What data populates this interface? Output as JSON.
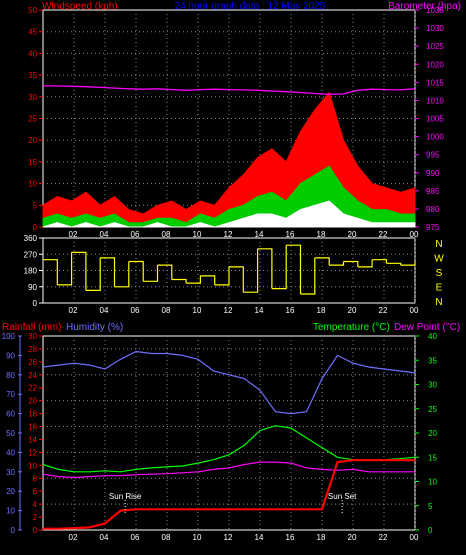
{
  "header": {
    "left_label": "Windspeed (kph)",
    "center_label": "24 hour graph data : 12 May 2025",
    "right_label": "Barometer (hpa)"
  },
  "colors": {
    "bg": "#000000",
    "frame": "#ffffff",
    "grid": "#8a8a8a",
    "wind_gust": "#ff0000",
    "wind_avg": "#00cc00",
    "wind_min": "#ffffff",
    "barometer": "#ff00ff",
    "direction": "#ffff00",
    "humidity": "#7070ff",
    "temperature": "#00ff00",
    "dewpoint": "#ff00ff",
    "rainfall": "#ff0000",
    "header_blue": "#0000ff",
    "left_axis_red": "#ff0000",
    "right_axis_magenta": "#ff00ff",
    "right_axis_green": "#00ff00"
  },
  "chart_data": [
    {
      "type": "line",
      "title": "",
      "xlabel": "",
      "x_tick_labels": [
        "02",
        "04",
        "06",
        "08",
        "10",
        "12",
        "14",
        "16",
        "18",
        "20",
        "22",
        "00"
      ],
      "left_axis": {
        "label": "Windspeed (kph)",
        "ticks": [
          0,
          5,
          10,
          15,
          20,
          25,
          30,
          35,
          40,
          45,
          50
        ],
        "ylim": [
          0,
          50
        ]
      },
      "right_axis": {
        "label": "Barometer (hpa)",
        "ticks": [
          975,
          980,
          985,
          990,
          995,
          1000,
          1005,
          1010,
          1015,
          1020,
          1025,
          1030,
          1035
        ],
        "ylim": [
          975,
          1035
        ]
      },
      "grid": true,
      "series": [
        {
          "name": "",
          "axis": "right",
          "values": [
            1014,
            1014,
            1013.9,
            1013.8,
            1013.6,
            1013.4,
            1013.2,
            1013.1,
            1013.2,
            1013.0,
            1012.8,
            1013.0,
            1013.1,
            1013.0,
            1012.9,
            1012.8,
            1012.6,
            1012.4,
            1012.2,
            1011.9,
            1011.7,
            1011.8,
            1012.8,
            1013.1,
            1013.0,
            1012.9,
            1013.2
          ]
        },
        {
          "name": "",
          "axis": "left",
          "values": [
            5,
            7,
            6,
            8,
            5,
            7,
            4,
            3,
            5,
            6,
            4,
            6,
            5,
            9,
            12,
            16,
            18,
            15,
            22,
            27,
            31,
            20,
            14,
            10,
            9,
            8,
            9
          ]
        },
        {
          "name": "",
          "axis": "left",
          "values": [
            2,
            3,
            2,
            3,
            2,
            3,
            1,
            1,
            2,
            2,
            1,
            3,
            2,
            4,
            5,
            7,
            8,
            6,
            10,
            12,
            14,
            9,
            6,
            4,
            4,
            3,
            3
          ]
        },
        {
          "name": "",
          "axis": "left",
          "values": [
            0,
            1,
            0,
            1,
            0,
            1,
            0,
            0,
            1,
            0,
            0,
            1,
            0,
            1,
            2,
            3,
            3,
            2,
            4,
            5,
            6,
            3,
            2,
            1,
            1,
            1,
            1
          ]
        }
      ]
    },
    {
      "type": "line",
      "title": "",
      "x_tick_labels": [
        "02",
        "04",
        "06",
        "08",
        "10",
        "12",
        "14",
        "16",
        "18",
        "20",
        "22",
        "00"
      ],
      "left_axis": {
        "ticks": [
          0,
          90,
          180,
          270,
          360
        ],
        "ylim": [
          0,
          360
        ]
      },
      "right_axis": {
        "labels": [
          "N",
          "W",
          "S",
          "E",
          "N"
        ]
      },
      "grid": true,
      "series": [
        {
          "name": "",
          "values": [
            240,
            100,
            280,
            70,
            250,
            90,
            230,
            120,
            210,
            130,
            110,
            150,
            100,
            200,
            60,
            300,
            80,
            320,
            50,
            250,
            210,
            230,
            200,
            240,
            220,
            210,
            230
          ]
        }
      ]
    },
    {
      "type": "line",
      "title": "",
      "x_tick_labels": [
        "02",
        "04",
        "06",
        "08",
        "10",
        "12",
        "14",
        "16",
        "18",
        "20",
        "22",
        "00"
      ],
      "header_labels": {
        "rainfall": "Rainfall (mm)",
        "humidity": "Humidity (%)",
        "temperature": "Temperature (°C)",
        "dewpoint": "Dew Point (°C)"
      },
      "axis_humidity": {
        "ticks": [
          0,
          10,
          20,
          30,
          40,
          50,
          60,
          70,
          80,
          90,
          100
        ],
        "ylim": [
          0,
          100
        ]
      },
      "axis_rain": {
        "ticks": [
          0,
          2,
          4,
          6,
          8,
          10,
          12,
          14,
          16,
          18,
          20,
          22,
          24,
          26,
          28,
          30
        ],
        "ylim": [
          0,
          30
        ]
      },
      "axis_temp": {
        "ticks": [
          0,
          5,
          10,
          15,
          20,
          25,
          30,
          35,
          40
        ],
        "ylim": [
          0,
          40
        ]
      },
      "annotations": [
        {
          "text": "Sun Rise",
          "x": 5.3
        },
        {
          "text": "Sun Set",
          "x": 19.3
        }
      ],
      "grid": true,
      "x_hours": [
        0,
        1,
        2,
        3,
        4,
        5,
        6,
        7,
        8,
        9,
        10,
        11,
        12,
        13,
        14,
        15,
        16,
        17,
        18,
        19,
        20,
        21,
        22,
        23,
        24
      ],
      "series": [
        {
          "name": "Humidity (%)",
          "axis": "humidity",
          "values": [
            84,
            85,
            86,
            85,
            83,
            88,
            92,
            91,
            91,
            90,
            88,
            82,
            80,
            78,
            72,
            61,
            60,
            61,
            78,
            90,
            86,
            84,
            83,
            82,
            81
          ]
        },
        {
          "name": "Temperature (°C)",
          "axis": "temp",
          "values": [
            13.5,
            12.5,
            12.0,
            12.0,
            12.2,
            12.0,
            12.5,
            12.8,
            13.0,
            13.2,
            13.8,
            14.5,
            15.5,
            17.5,
            20.5,
            21.5,
            21.0,
            19.0,
            17.0,
            15.0,
            14.5,
            14.5,
            14.5,
            14.7,
            15.0
          ]
        },
        {
          "name": "Dew Point (°C)",
          "axis": "temp",
          "values": [
            11.5,
            11.0,
            10.8,
            11.0,
            11.2,
            11.2,
            11.4,
            11.5,
            11.6,
            11.8,
            12.0,
            12.5,
            12.8,
            13.5,
            14.0,
            14.0,
            13.8,
            12.8,
            12.5,
            12.3,
            12.5,
            12.0,
            12.0,
            12.0,
            12.0
          ]
        },
        {
          "name": "Rainfall (mm)",
          "axis": "rain",
          "values": [
            0.2,
            0.2,
            0.3,
            0.4,
            1.0,
            3.0,
            3.2,
            3.2,
            3.2,
            3.2,
            3.2,
            3.2,
            3.2,
            3.2,
            3.2,
            3.2,
            3.2,
            3.2,
            3.2,
            10.5,
            10.8,
            10.8,
            10.8,
            10.8,
            10.8
          ]
        }
      ]
    }
  ]
}
